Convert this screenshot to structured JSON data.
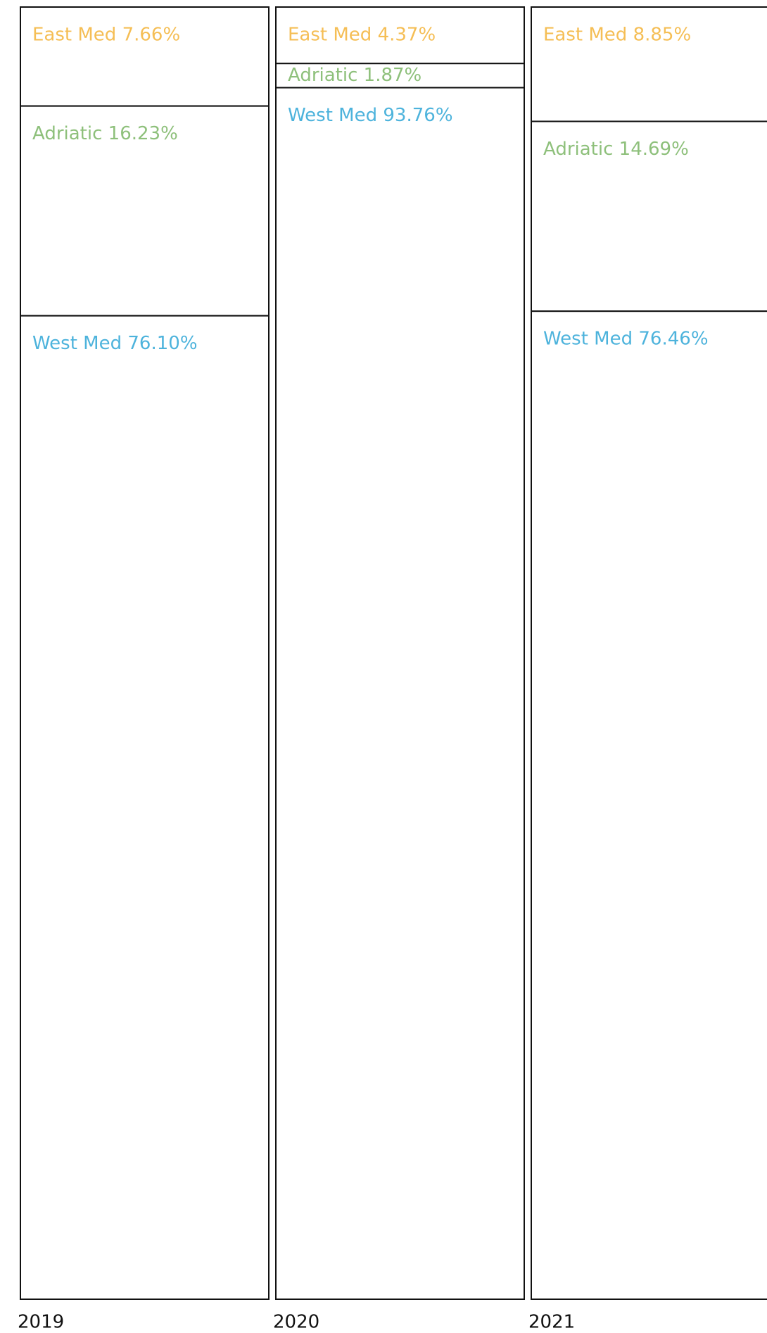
{
  "chart_data": {
    "type": "stacked-column",
    "categories": [
      "2019",
      "2020",
      "2021"
    ],
    "series": [
      {
        "name": "East Med",
        "color": "#f5be55",
        "values": [
          7.66,
          4.37,
          8.85
        ],
        "value_labels": [
          "East Med 7.66%",
          "East Med 4.37%",
          "East Med 8.85%"
        ]
      },
      {
        "name": "Adriatic",
        "color": "#8ec07b",
        "values": [
          16.23,
          1.87,
          14.69
        ],
        "value_labels": [
          "Adriatic 16.23%",
          "Adriatic 1.87%",
          "Adriatic 14.69%"
        ]
      },
      {
        "name": "West Med",
        "color": "#4db3dc",
        "values": [
          76.1,
          93.76,
          76.46
        ],
        "value_labels": [
          "West Med 76.10%",
          "West Med 93.76%",
          "West Med 76.46%"
        ]
      }
    ]
  }
}
